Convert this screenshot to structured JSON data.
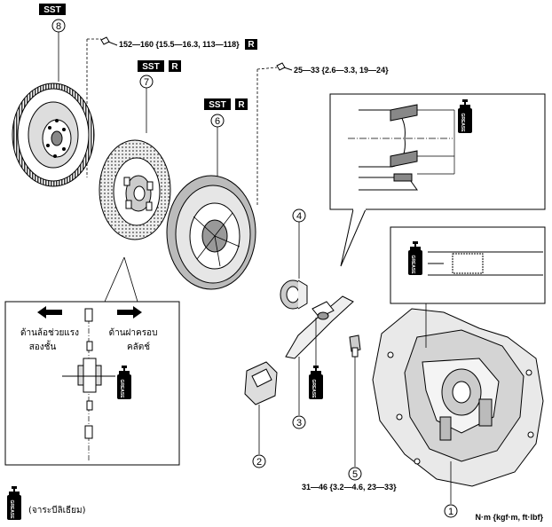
{
  "badges": {
    "sst": "SST",
    "replace": "R"
  },
  "callouts": [
    "1",
    "2",
    "3",
    "4",
    "5",
    "6",
    "7",
    "8"
  ],
  "torques": {
    "flywheel_bolt": "152—160 {15.5—16.3, 113—118}",
    "clutch_cover_bolt": "25—33 {2.6—3.3, 19—24}",
    "housing_bolt": "31—46 {3.2—4.6, 23—33}"
  },
  "detail": {
    "left_label_line1": "ด้านล้อช่วยแรง",
    "left_label_line2": "สองชั้น",
    "right_label_line1": "ด้านฝาครอบ",
    "right_label_line2": "คลัตช์"
  },
  "legend": {
    "grease_text": "GREASE",
    "grease_note": "(จาระบีลิเธียม)"
  },
  "units": "N·m {kgf·m, ft·lbf}"
}
